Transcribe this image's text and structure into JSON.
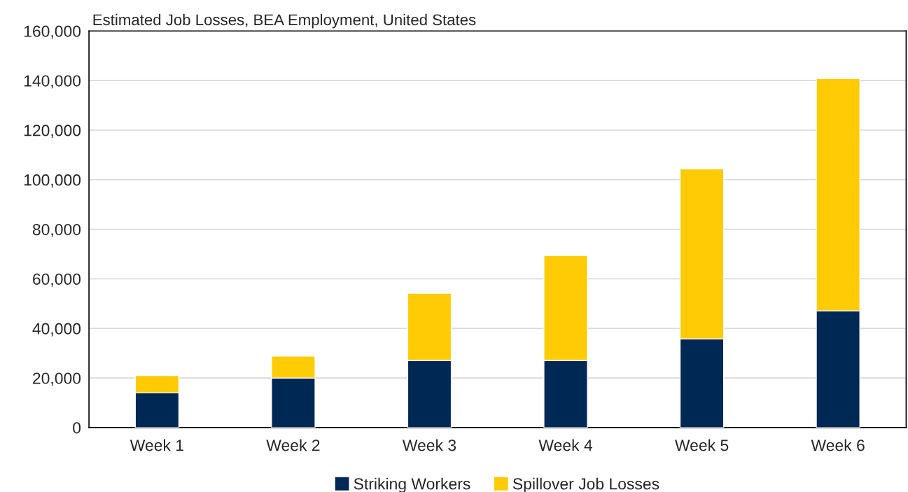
{
  "chart_data": {
    "type": "bar",
    "title": "Estimated Job Losses, BEA Employment, United States",
    "categories": [
      "Week 1",
      "Week 2",
      "Week 3",
      "Week 4",
      "Week 5",
      "Week 6"
    ],
    "series": [
      {
        "name": "Striking Workers",
        "color": "#002855",
        "values": [
          14000,
          20000,
          27100,
          27100,
          35800,
          47100
        ]
      },
      {
        "name": "Spillover Job Losses",
        "color": "#ffcb05",
        "values": [
          7000,
          8800,
          27100,
          42300,
          68600,
          93700
        ]
      }
    ],
    "stacked": true,
    "ylim": [
      0,
      160000
    ],
    "yticks": [
      {
        "value": 0,
        "label": "0"
      },
      {
        "value": 20000,
        "label": "20,000"
      },
      {
        "value": 40000,
        "label": "40,000"
      },
      {
        "value": 60000,
        "label": "60,000"
      },
      {
        "value": 80000,
        "label": "80,000"
      },
      {
        "value": 100000,
        "label": "100,000"
      },
      {
        "value": 120000,
        "label": "120,000"
      },
      {
        "value": 140000,
        "label": "140,000"
      },
      {
        "value": 160000,
        "label": "160,000"
      }
    ],
    "grid": "y",
    "legend": "bottom"
  }
}
